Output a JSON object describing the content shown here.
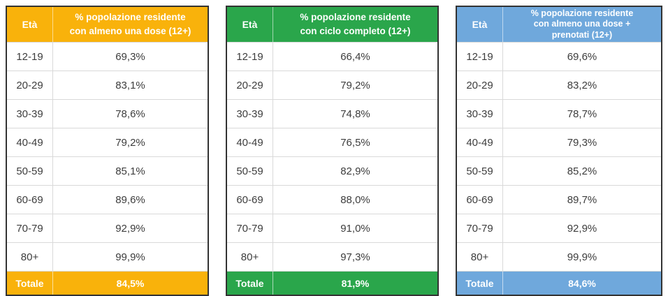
{
  "page": {
    "background": "#ffffff",
    "table_border_color": "#333333",
    "row_divider_color": "#d9d9d9",
    "body_text_color": "#3d3d3d",
    "header_text_color": "#ffffff"
  },
  "tables": [
    {
      "accent_color": "#F9B20B",
      "header": {
        "age_label": "Età",
        "value_label": "% popolazione residente\ncon almeno una dose (12+)"
      },
      "rows": [
        {
          "age": "12-19",
          "value": "69,3%"
        },
        {
          "age": "20-29",
          "value": "83,1%"
        },
        {
          "age": "30-39",
          "value": "78,6%"
        },
        {
          "age": "40-49",
          "value": "79,2%"
        },
        {
          "age": "50-59",
          "value": "85,1%"
        },
        {
          "age": "60-69",
          "value": "89,6%"
        },
        {
          "age": "70-79",
          "value": "92,9%"
        },
        {
          "age": "80+",
          "value": "99,9%"
        }
      ],
      "total": {
        "label": "Totale",
        "value": "84,5%"
      }
    },
    {
      "accent_color": "#2AA64B",
      "header": {
        "age_label": "Età",
        "value_label": "% popolazione residente\ncon ciclo completo (12+)"
      },
      "rows": [
        {
          "age": "12-19",
          "value": "66,4%"
        },
        {
          "age": "20-29",
          "value": "79,2%"
        },
        {
          "age": "30-39",
          "value": "74,8%"
        },
        {
          "age": "40-49",
          "value": "76,5%"
        },
        {
          "age": "50-59",
          "value": "82,9%"
        },
        {
          "age": "60-69",
          "value": "88,0%"
        },
        {
          "age": "70-79",
          "value": "91,0%"
        },
        {
          "age": "80+",
          "value": "97,3%"
        }
      ],
      "total": {
        "label": "Totale",
        "value": "81,9%"
      }
    },
    {
      "accent_color": "#6FA8DC",
      "header": {
        "age_label": "Età",
        "value_label": "% popolazione residente\ncon almeno una dose +\nprenotati (12+)"
      },
      "rows": [
        {
          "age": "12-19",
          "value": "69,6%"
        },
        {
          "age": "20-29",
          "value": "83,2%"
        },
        {
          "age": "30-39",
          "value": "78,7%"
        },
        {
          "age": "40-49",
          "value": "79,3%"
        },
        {
          "age": "50-59",
          "value": "85,2%"
        },
        {
          "age": "60-69",
          "value": "89,7%"
        },
        {
          "age": "70-79",
          "value": "92,9%"
        },
        {
          "age": "80+",
          "value": "99,9%"
        }
      ],
      "total": {
        "label": "Totale",
        "value": "84,6%"
      }
    }
  ],
  "chart_data": [
    {
      "type": "table",
      "title": "% popolazione residente con almeno una dose (12+)",
      "columns": [
        "Età",
        "% popolazione residente con almeno una dose (12+)"
      ],
      "categories": [
        "12-19",
        "20-29",
        "30-39",
        "40-49",
        "50-59",
        "60-69",
        "70-79",
        "80+",
        "Totale"
      ],
      "values_pct": [
        69.3,
        83.1,
        78.6,
        79.2,
        85.1,
        89.6,
        92.9,
        99.9,
        84.5
      ],
      "accent_color": "#F9B20B"
    },
    {
      "type": "table",
      "title": "% popolazione residente con ciclo completo (12+)",
      "columns": [
        "Età",
        "% popolazione residente con ciclo completo (12+)"
      ],
      "categories": [
        "12-19",
        "20-29",
        "30-39",
        "40-49",
        "50-59",
        "60-69",
        "70-79",
        "80+",
        "Totale"
      ],
      "values_pct": [
        66.4,
        79.2,
        74.8,
        76.5,
        82.9,
        88.0,
        91.0,
        97.3,
        81.9
      ],
      "accent_color": "#2AA64B"
    },
    {
      "type": "table",
      "title": "% popolazione residente con almeno una dose + prenotati (12+)",
      "columns": [
        "Età",
        "% popolazione residente con almeno una dose + prenotati (12+)"
      ],
      "categories": [
        "12-19",
        "20-29",
        "30-39",
        "40-49",
        "50-59",
        "60-69",
        "70-79",
        "80+",
        "Totale"
      ],
      "values_pct": [
        69.6,
        83.2,
        78.7,
        79.3,
        85.2,
        89.7,
        92.9,
        99.9,
        84.6
      ],
      "accent_color": "#6FA8DC"
    }
  ]
}
